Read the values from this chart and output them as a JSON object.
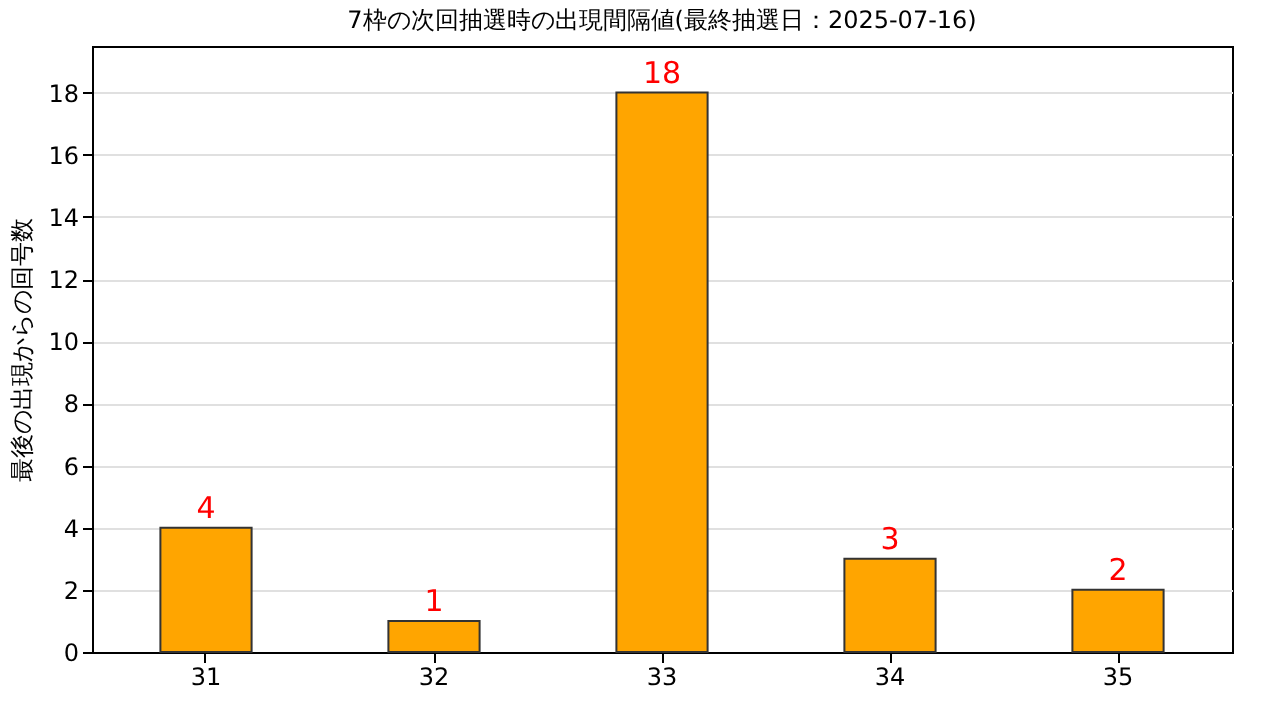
{
  "chart_data": {
    "type": "bar",
    "title": "7枠の次回抽選時の出現間隔値(最終抽選日：2025-07-16)",
    "ylabel": "最後の出現からの回号数",
    "categories": [
      "31",
      "32",
      "33",
      "34",
      "35"
    ],
    "values": [
      4,
      1,
      18,
      3,
      2
    ],
    "color": "#ffa500",
    "ylim": [
      0,
      19.5
    ],
    "yticks": [
      0,
      2,
      4,
      6,
      8,
      10,
      12,
      14,
      16,
      18
    ],
    "grid": "y",
    "data_labels": true
  }
}
